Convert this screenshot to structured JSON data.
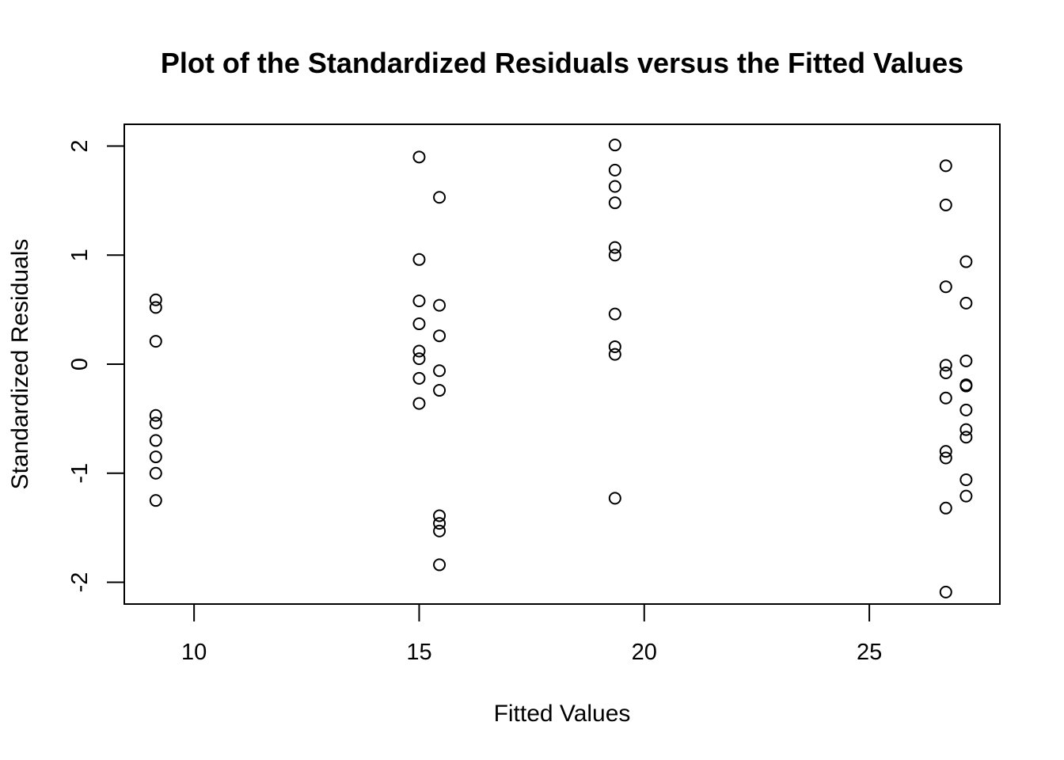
{
  "chart_data": {
    "type": "scatter",
    "title": "Plot of the Standardized Residuals versus the Fitted Values",
    "xlabel": "Fitted Values",
    "ylabel": "Standardized Residuals",
    "xlim": [
      8.45,
      27.9
    ],
    "ylim": [
      -2.2,
      2.2
    ],
    "xticks": [
      10,
      15,
      20,
      25
    ],
    "xtick_labels": [
      "10",
      "15",
      "20",
      "25"
    ],
    "yticks": [
      -2,
      -1,
      0,
      1,
      2
    ],
    "ytick_labels": [
      "-2",
      "-1",
      "0",
      "1",
      "2"
    ],
    "grid": false,
    "legend": "none",
    "marker": "open-circle",
    "points": [
      {
        "x": 9.15,
        "y": 0.59
      },
      {
        "x": 9.15,
        "y": 0.52
      },
      {
        "x": 9.15,
        "y": 0.21
      },
      {
        "x": 9.15,
        "y": -0.47
      },
      {
        "x": 9.15,
        "y": -0.54
      },
      {
        "x": 9.15,
        "y": -0.7
      },
      {
        "x": 9.15,
        "y": -0.85
      },
      {
        "x": 9.15,
        "y": -1.0
      },
      {
        "x": 9.15,
        "y": -1.25
      },
      {
        "x": 15.0,
        "y": 1.9
      },
      {
        "x": 15.0,
        "y": 0.96
      },
      {
        "x": 15.0,
        "y": 0.58
      },
      {
        "x": 15.0,
        "y": 0.37
      },
      {
        "x": 15.0,
        "y": 0.12
      },
      {
        "x": 15.0,
        "y": 0.05
      },
      {
        "x": 15.0,
        "y": -0.13
      },
      {
        "x": 15.0,
        "y": -0.36
      },
      {
        "x": 15.45,
        "y": 1.53
      },
      {
        "x": 15.45,
        "y": 0.54
      },
      {
        "x": 15.45,
        "y": 0.26
      },
      {
        "x": 15.45,
        "y": -0.06
      },
      {
        "x": 15.45,
        "y": -0.24
      },
      {
        "x": 15.45,
        "y": -1.39
      },
      {
        "x": 15.45,
        "y": -1.46
      },
      {
        "x": 15.45,
        "y": -1.53
      },
      {
        "x": 15.45,
        "y": -1.84
      },
      {
        "x": 19.35,
        "y": 2.01
      },
      {
        "x": 19.35,
        "y": 1.78
      },
      {
        "x": 19.35,
        "y": 1.63
      },
      {
        "x": 19.35,
        "y": 1.48
      },
      {
        "x": 19.35,
        "y": 1.07
      },
      {
        "x": 19.35,
        "y": 1.0
      },
      {
        "x": 19.35,
        "y": 0.46
      },
      {
        "x": 19.35,
        "y": 0.16
      },
      {
        "x": 19.35,
        "y": 0.09
      },
      {
        "x": 19.35,
        "y": -1.23
      },
      {
        "x": 26.7,
        "y": 1.82
      },
      {
        "x": 26.7,
        "y": 1.46
      },
      {
        "x": 26.7,
        "y": 0.71
      },
      {
        "x": 26.7,
        "y": -0.01
      },
      {
        "x": 26.7,
        "y": -0.08
      },
      {
        "x": 26.7,
        "y": -0.31
      },
      {
        "x": 26.7,
        "y": -0.8
      },
      {
        "x": 26.7,
        "y": -0.86
      },
      {
        "x": 26.7,
        "y": -1.32
      },
      {
        "x": 26.7,
        "y": -2.09
      },
      {
        "x": 27.15,
        "y": 0.94
      },
      {
        "x": 27.15,
        "y": 0.56
      },
      {
        "x": 27.15,
        "y": 0.03
      },
      {
        "x": 27.15,
        "y": -0.19
      },
      {
        "x": 27.15,
        "y": -0.2
      },
      {
        "x": 27.15,
        "y": -0.42
      },
      {
        "x": 27.15,
        "y": -0.6
      },
      {
        "x": 27.15,
        "y": -0.67
      },
      {
        "x": 27.15,
        "y": -1.06
      },
      {
        "x": 27.15,
        "y": -1.21
      }
    ]
  }
}
